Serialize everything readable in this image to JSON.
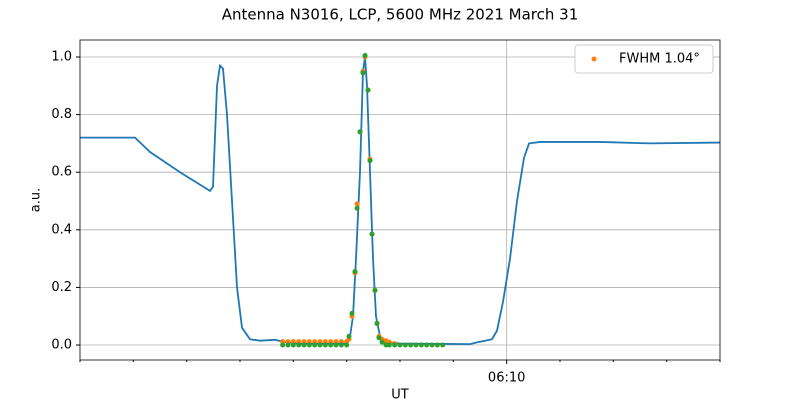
{
  "chart_data": {
    "type": "line",
    "title": "Antenna N3016, LCP, 5600 MHz 2021 March 31",
    "xlabel": "UT",
    "ylabel": "a.u.",
    "xlim": [
      2,
      14
    ],
    "ylim": [
      -0.052,
      1.059
    ],
    "xticks": [
      {
        "value": 10,
        "label": "06:10"
      }
    ],
    "xminorticks": [
      2,
      3,
      4,
      5,
      6,
      7,
      8,
      9,
      11,
      12,
      13,
      14
    ],
    "yticks": [
      {
        "value": 0,
        "label": "0.0"
      },
      0.2,
      0.4,
      0.6,
      0.8,
      {
        "value": 1,
        "label": "1.0"
      }
    ],
    "grid": true,
    "legend": "upper right",
    "series": [
      {
        "type": "line",
        "color": "#1f77b4",
        "x": [
          2.0,
          3.031,
          3.313,
          3.875,
          4.438,
          4.494,
          4.569,
          4.625,
          4.681,
          4.756,
          4.85,
          4.944,
          5.038,
          5.188,
          5.375,
          5.656,
          5.844,
          6.125,
          6.969,
          7.063,
          7.119,
          7.175,
          7.25,
          7.306,
          7.344,
          7.381,
          7.438,
          7.494,
          7.55,
          7.625,
          7.719,
          8.0,
          9.313,
          9.463,
          9.594,
          9.725,
          9.819,
          9.931,
          10.063,
          10.194,
          10.325,
          10.419,
          10.625,
          11.75,
          12.688,
          14.0
        ],
        "values": [
          0.72,
          0.72,
          0.67,
          0.6,
          0.535,
          0.55,
          0.9,
          0.97,
          0.96,
          0.8,
          0.5,
          0.2,
          0.06,
          0.02,
          0.015,
          0.018,
          0.01,
          0.005,
          0.005,
          0.03,
          0.1,
          0.3,
          0.6,
          0.95,
          1.0,
          0.9,
          0.6,
          0.3,
          0.1,
          0.03,
          0.01,
          0.005,
          0.003,
          0.01,
          0.015,
          0.02,
          0.05,
          0.15,
          0.3,
          0.5,
          0.65,
          0.7,
          0.705,
          0.705,
          0.7,
          0.703
        ]
      },
      {
        "type": "scatter",
        "name": "FWHM 1.04°",
        "color": "#ff7f0e",
        "x": [
          5.8,
          5.9,
          6.0,
          6.1,
          6.2,
          6.3,
          6.4,
          6.5,
          6.6,
          6.7,
          6.8,
          6.9,
          7.0,
          7.044,
          7.1,
          7.156,
          7.194,
          7.25,
          7.306,
          7.344,
          7.4,
          7.438,
          7.475,
          7.531,
          7.569,
          7.606,
          7.663,
          7.738,
          7.8,
          7.9
        ],
        "values": [
          0.012,
          0.012,
          0.012,
          0.012,
          0.012,
          0.012,
          0.012,
          0.012,
          0.012,
          0.012,
          0.012,
          0.012,
          0.012,
          0.02,
          0.1,
          0.25,
          0.49,
          0.74,
          0.95,
          1.0,
          0.885,
          0.645,
          0.385,
          0.19,
          0.075,
          0.03,
          0.02,
          0.015,
          0.01,
          0.005
        ]
      },
      {
        "type": "scatter",
        "color": "#2ca02c",
        "x": [
          5.8,
          5.9,
          6.0,
          6.1,
          6.2,
          6.3,
          6.4,
          6.5,
          6.6,
          6.7,
          6.8,
          6.9,
          7.0,
          7.044,
          7.1,
          7.156,
          7.194,
          7.25,
          7.306,
          7.344,
          7.4,
          7.438,
          7.475,
          7.531,
          7.569,
          7.606,
          7.663,
          7.738,
          7.8,
          7.9,
          8.0,
          8.1,
          8.2,
          8.3,
          8.4,
          8.5,
          8.6,
          8.7,
          8.8
        ],
        "values": [
          0,
          0,
          0,
          0,
          0,
          0,
          0,
          0,
          0,
          0,
          0,
          0,
          0,
          0.03,
          0.11,
          0.255,
          0.475,
          0.74,
          0.945,
          1.005,
          0.885,
          0.64,
          0.385,
          0.19,
          0.075,
          0.025,
          0.01,
          0,
          0,
          0,
          0,
          0,
          0,
          0,
          0,
          0,
          0,
          0,
          0
        ]
      }
    ]
  }
}
